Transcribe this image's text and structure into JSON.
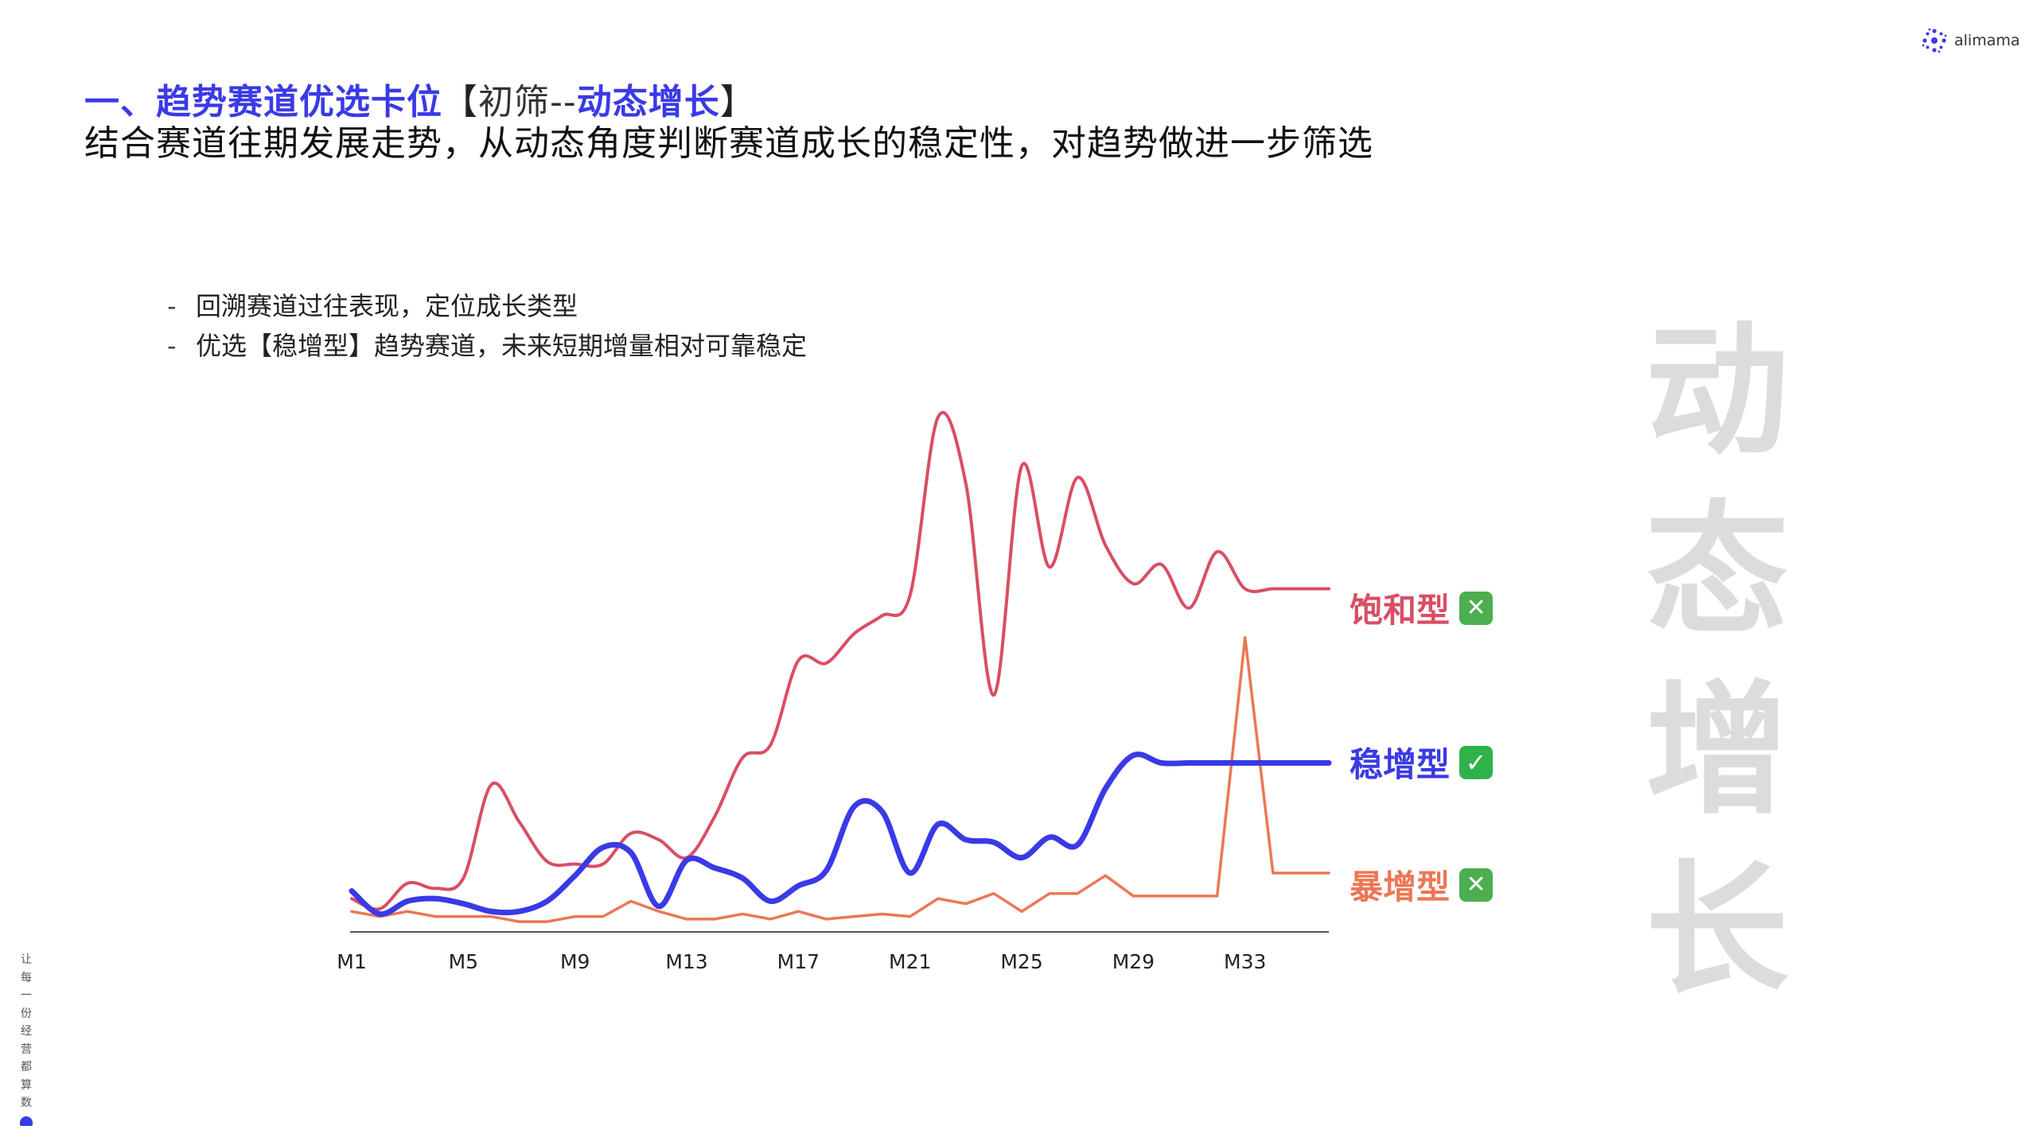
{
  "header": {
    "title_prefix": "一、趋势赛道优选卡位",
    "title_bracket_open": "【",
    "title_light": "初筛--",
    "title_emph": "动态增长",
    "title_bracket_close": "】",
    "subtitle": "结合赛道往期发展走势，从动态角度判断赛道成长的稳定性，对趋势做进一步筛选"
  },
  "logo": {
    "text": "alimama",
    "icon": "alimama-logo-icon"
  },
  "bullets": [
    {
      "dash": "-",
      "text": "回溯赛道过往表现，定位成长类型"
    },
    {
      "dash": "-",
      "text": "优选【稳增型】趋势赛道，未来短期增量相对可靠稳定"
    }
  ],
  "side_heading": [
    "动",
    "态",
    "增",
    "长"
  ],
  "slogan": [
    "让",
    "每",
    "一",
    "份",
    "经",
    "营",
    "都",
    "算",
    "数"
  ],
  "legend": {
    "saturated": {
      "label": "饱和型",
      "mark": "✕",
      "icon": "cross-mark-icon"
    },
    "steady": {
      "label": "稳增型",
      "mark": "✓",
      "icon": "check-mark-icon"
    },
    "surge": {
      "label": "暴增型",
      "mark": "✕",
      "icon": "cross-mark-icon"
    }
  },
  "colors": {
    "saturated": "#d94e63",
    "steady": "#3a3ae6",
    "surge": "#ec7755",
    "title_blue": "#3a3ae6"
  },
  "chart_data": {
    "type": "line",
    "x_count": 36,
    "tick_labels": [
      "M1",
      "M5",
      "M9",
      "M13",
      "M17",
      "M21",
      "M25",
      "M29",
      "M33"
    ],
    "ylim": [
      0,
      400
    ],
    "grid": false,
    "series": [
      {
        "name": "饱和型",
        "color": "#d94e63",
        "values": [
          26,
          18,
          38,
          34,
          42,
          115,
          86,
          55,
          53,
          53,
          77,
          72,
          58,
          90,
          136,
          146,
          212,
          210,
          233,
          247,
          263,
          402,
          350,
          185,
          364,
          285,
          355,
          302,
          272,
          287,
          253,
          297,
          268,
          268,
          268,
          268
        ]
      },
      {
        "name": "稳增型",
        "color": "#3a3ae6",
        "values": [
          32,
          14,
          24,
          26,
          22,
          16,
          16,
          24,
          44,
          66,
          62,
          20,
          56,
          50,
          42,
          24,
          36,
          48,
          98,
          94,
          46,
          84,
          72,
          70,
          58,
          74,
          68,
          112,
          138,
          132,
          132,
          132,
          132,
          132,
          132,
          132
        ]
      },
      {
        "name": "暴增型",
        "color": "#ec7755",
        "values": [
          16,
          12,
          16,
          12,
          12,
          12,
          8,
          8,
          12,
          12,
          24,
          16,
          10,
          10,
          14,
          10,
          16,
          10,
          12,
          14,
          12,
          26,
          22,
          30,
          16,
          30,
          30,
          44,
          28,
          28,
          28,
          28,
          230,
          46,
          46,
          46
        ]
      }
    ]
  }
}
